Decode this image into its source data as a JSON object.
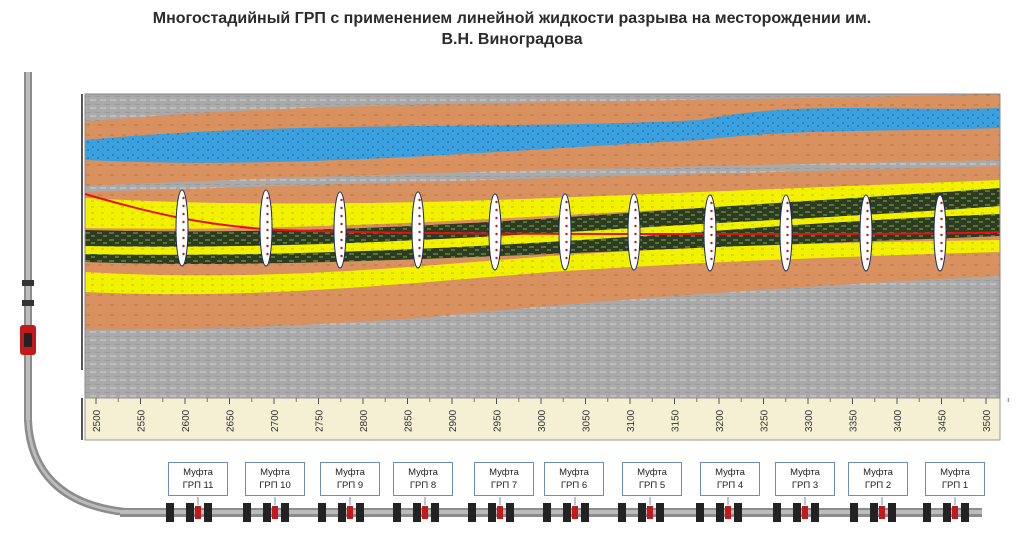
{
  "title_line1": "Многостадийный ГРП с применением линейной жидкости разрыва на месторождении им.",
  "title_line2": "В.Н. Виноградова",
  "depth_scale": {
    "ticks": [
      "2500",
      "2550",
      "2600",
      "2650",
      "2700",
      "2750",
      "2800",
      "2850",
      "2900",
      "2950",
      "3000",
      "3050",
      "3100",
      "3150",
      "3200",
      "3250",
      "3300",
      "3350",
      "3400",
      "3450",
      "3500"
    ]
  },
  "fracture_count": 11,
  "couplings": [
    {
      "label": "Муфта",
      "stage": "ГРП 11"
    },
    {
      "label": "Муфта",
      "stage": "ГРП 10"
    },
    {
      "label": "Муфта",
      "stage": "ГРП 9"
    },
    {
      "label": "Муфта",
      "stage": "ГРП 8"
    },
    {
      "label": "Муфта",
      "stage": "ГРП 7"
    },
    {
      "label": "Муфта",
      "stage": "ГРП 6"
    },
    {
      "label": "Муфта",
      "stage": "ГРП 5"
    },
    {
      "label": "Муфта",
      "stage": "ГРП 4"
    },
    {
      "label": "Муфта",
      "stage": "ГРП 3"
    },
    {
      "label": "Муфта",
      "stage": "ГРП 2"
    },
    {
      "label": "Муфта",
      "stage": "ГРП 1"
    }
  ],
  "colors": {
    "clay": "#d9915f",
    "water": "#3aa0df",
    "sand": "#f2f200",
    "shale_dark": "#2e3a22",
    "gray": "#a8a8a8",
    "trajectory": "#e81010",
    "scale_bg": "#f5efd3"
  }
}
